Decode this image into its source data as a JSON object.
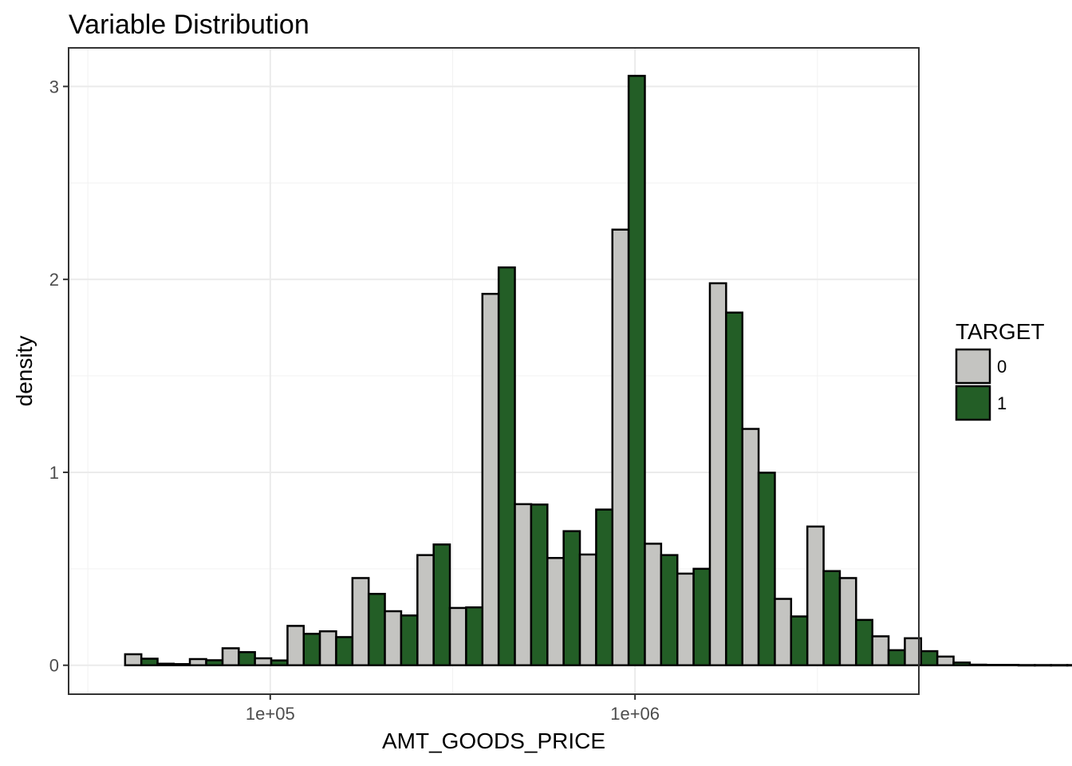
{
  "chart_data": {
    "type": "bar",
    "title": "Variable Distribution",
    "xlabel": "AMT_GOODS_PRICE",
    "ylabel": "density",
    "x_scale": "log10",
    "xlim": [
      28000,
      6000000
    ],
    "ylim": [
      -0.15,
      3.2
    ],
    "x_ticks": [
      {
        "value": 100000,
        "label": "1e+05"
      },
      {
        "value": 1000000,
        "label": "1e+06"
      }
    ],
    "y_ticks": [
      {
        "value": 0,
        "label": "0"
      },
      {
        "value": 1,
        "label": "1"
      },
      {
        "value": 2,
        "label": "2"
      },
      {
        "value": 3,
        "label": "3"
      }
    ],
    "grid": true,
    "legend": {
      "title": "TARGET",
      "position": "right"
    },
    "series": [
      {
        "name": "0",
        "color": "#c4c4c1"
      },
      {
        "name": "1",
        "color": "#235e26"
      }
    ],
    "bins": [
      {
        "x_min": 40000,
        "x_max": 49100,
        "values": [
          0.057,
          0.034
        ]
      },
      {
        "x_min": 49100,
        "x_max": 60200,
        "values": [
          0.008,
          0.006
        ]
      },
      {
        "x_min": 60200,
        "x_max": 74000,
        "values": [
          0.032,
          0.026
        ]
      },
      {
        "x_min": 74000,
        "x_max": 90800,
        "values": [
          0.088,
          0.068
        ]
      },
      {
        "x_min": 90800,
        "x_max": 111500,
        "values": [
          0.036,
          0.025
        ]
      },
      {
        "x_min": 111500,
        "x_max": 136800,
        "values": [
          0.204,
          0.163
        ]
      },
      {
        "x_min": 136800,
        "x_max": 168000,
        "values": [
          0.176,
          0.146
        ]
      },
      {
        "x_min": 168000,
        "x_max": 206200,
        "values": [
          0.452,
          0.37
        ]
      },
      {
        "x_min": 206200,
        "x_max": 253200,
        "values": [
          0.28,
          0.258
        ]
      },
      {
        "x_min": 253200,
        "x_max": 310800,
        "values": [
          0.571,
          0.626
        ]
      },
      {
        "x_min": 310800,
        "x_max": 381600,
        "values": [
          0.297,
          0.3
        ]
      },
      {
        "x_min": 381600,
        "x_max": 468500,
        "values": [
          1.925,
          2.062
        ]
      },
      {
        "x_min": 468500,
        "x_max": 575200,
        "values": [
          0.835,
          0.833
        ]
      },
      {
        "x_min": 575200,
        "x_max": 706100,
        "values": [
          0.556,
          0.695
        ]
      },
      {
        "x_min": 706100,
        "x_max": 866900,
        "values": [
          0.574,
          0.807
        ]
      },
      {
        "x_min": 866900,
        "x_max": 1064200,
        "values": [
          2.258,
          3.055
        ]
      },
      {
        "x_min": 1064200,
        "x_max": 1306500,
        "values": [
          0.63,
          0.571
        ]
      },
      {
        "x_min": 1306500,
        "x_max": 1604000,
        "values": [
          0.475,
          0.5
        ]
      },
      {
        "x_min": 1604000,
        "x_max": 1969200,
        "values": [
          1.98,
          1.828
        ]
      },
      {
        "x_min": 1969200,
        "x_max": 2417500,
        "values": [
          1.225,
          0.998
        ]
      },
      {
        "x_min": 2417500,
        "x_max": 2967900,
        "values": [
          0.344,
          0.253
        ]
      },
      {
        "x_min": 2967900,
        "x_max": 3643700,
        "values": [
          0.719,
          0.488
        ]
      },
      {
        "x_min": 3643700,
        "x_max": 4473300,
        "values": [
          0.452,
          0.235
        ]
      },
      {
        "x_min": 4473300,
        "x_max": 5491700,
        "values": [
          0.15,
          0.078
        ]
      },
      {
        "x_min": 5491700,
        "x_max": 6742000,
        "values": [
          0.14,
          0.073
        ]
      },
      {
        "x_min": 6742000,
        "x_max": 8277000,
        "values": [
          0.045,
          0.014
        ]
      },
      {
        "x_min": 8277000,
        "x_max": 10161000,
        "values": [
          0.003,
          0.002
        ]
      },
      {
        "x_min": 10161000,
        "x_max": 12474000,
        "values": [
          0.002,
          0.001
        ]
      },
      {
        "x_min": 12474000,
        "x_max": 15314000,
        "values": [
          0.001,
          0.001
        ]
      },
      {
        "x_min": 15314000,
        "x_max": 18800000,
        "values": [
          0.001,
          0.001
        ]
      }
    ]
  }
}
